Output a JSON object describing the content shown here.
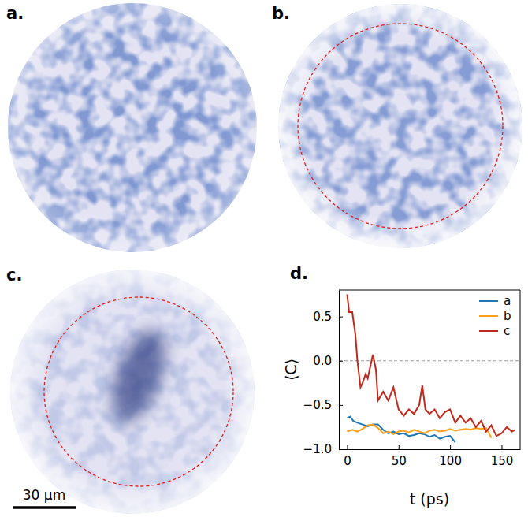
{
  "panels": [
    {
      "label": "a.",
      "dashed_circle": false
    },
    {
      "label": "b.",
      "dashed_circle": true
    },
    {
      "label": "c.",
      "dashed_circle": true
    }
  ],
  "scale_bar": {
    "label": "30 μm"
  },
  "chart_data": {
    "type": "line",
    "panel_label": "d.",
    "x_label": "t (ps)",
    "y_label": "⟨C⟩",
    "xlim": [
      -8,
      168
    ],
    "ylim": [
      -1.0,
      0.8
    ],
    "xticks": [
      0,
      50,
      100,
      150
    ],
    "yticks": [
      {
        "value": -1.0,
        "label": "−1.0"
      },
      {
        "value": -0.5,
        "label": "−0.5"
      },
      {
        "value": 0.0,
        "label": "0.0"
      },
      0.5
    ],
    "reference_line": 0,
    "legend": "upper right",
    "series": [
      {
        "name": "a",
        "color": "#1f77b4",
        "x": [
          0,
          3,
          6,
          10,
          15,
          20,
          25,
          30,
          35,
          40,
          45,
          50,
          55,
          60,
          65,
          70,
          75,
          80,
          85,
          90,
          95,
          100,
          105
        ],
        "values": [
          -0.65,
          -0.63,
          -0.68,
          -0.7,
          -0.72,
          -0.74,
          -0.72,
          -0.72,
          -0.78,
          -0.82,
          -0.8,
          -0.83,
          -0.82,
          -0.85,
          -0.84,
          -0.82,
          -0.83,
          -0.86,
          -0.84,
          -0.88,
          -0.86,
          -0.85,
          -0.92
        ]
      },
      {
        "name": "b",
        "color": "#ff9f1c",
        "x": [
          0,
          5,
          10,
          15,
          20,
          25,
          30,
          35,
          40,
          45,
          50,
          55,
          60,
          65,
          70,
          75,
          80,
          85,
          90,
          95,
          100,
          105,
          110,
          115,
          120,
          125,
          130,
          135,
          140
        ],
        "values": [
          -0.8,
          -0.78,
          -0.8,
          -0.77,
          -0.73,
          -0.72,
          -0.76,
          -0.82,
          -0.8,
          -0.83,
          -0.8,
          -0.79,
          -0.81,
          -0.78,
          -0.8,
          -0.82,
          -0.79,
          -0.78,
          -0.8,
          -0.79,
          -0.77,
          -0.79,
          -0.78,
          -0.77,
          -0.78,
          -0.76,
          -0.77,
          -0.76,
          -0.87
        ]
      },
      {
        "name": "c",
        "color": "#c0281b",
        "x": [
          0,
          2,
          5,
          8,
          10,
          13,
          15,
          18,
          20,
          25,
          28,
          30,
          35,
          40,
          45,
          50,
          55,
          60,
          65,
          70,
          73,
          76,
          80,
          85,
          90,
          95,
          100,
          105,
          110,
          115,
          120,
          125,
          130,
          135,
          140,
          145,
          150,
          155,
          160,
          163
        ],
        "values": [
          0.75,
          0.55,
          0.55,
          0.3,
          0.0,
          -0.3,
          -0.25,
          -0.15,
          -0.2,
          0.07,
          -0.1,
          -0.45,
          -0.35,
          -0.45,
          -0.3,
          -0.55,
          -0.62,
          -0.55,
          -0.6,
          -0.5,
          -0.28,
          -0.55,
          -0.6,
          -0.55,
          -0.65,
          -0.58,
          -0.55,
          -0.7,
          -0.62,
          -0.7,
          -0.65,
          -0.75,
          -0.68,
          -0.8,
          -0.73,
          -0.85,
          -0.82,
          -0.75,
          -0.8,
          -0.78
        ]
      }
    ]
  }
}
